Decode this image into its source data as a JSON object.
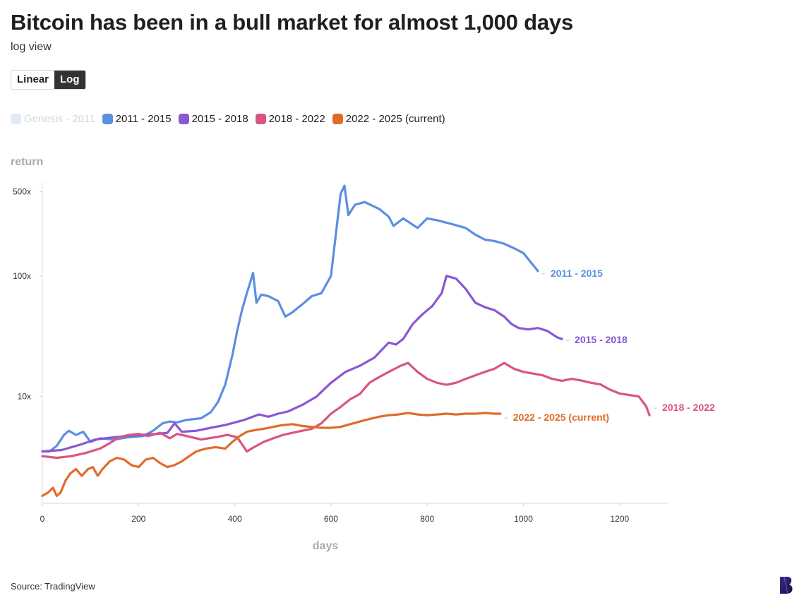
{
  "title": "Bitcoin has been in a bull market for almost 1,000 days",
  "subtitle": "log view",
  "toggle": {
    "linear_label": "Linear",
    "log_label": "Log",
    "selected": "Log"
  },
  "legend": [
    {
      "label": "Genesis - 2011",
      "color": "#cfdcf3",
      "visible": false
    },
    {
      "label": "2011 - 2015",
      "color": "#5b8fe0",
      "visible": true
    },
    {
      "label": "2015 - 2018",
      "color": "#8a57d4",
      "visible": true
    },
    {
      "label": "2018 - 2022",
      "color": "#d9557f",
      "visible": true
    },
    {
      "label": "2022 - 2025 (current)",
      "color": "#e06c2a",
      "visible": true
    }
  ],
  "source": "Source: TradingView",
  "chart_data": {
    "type": "line",
    "xlabel": "days",
    "ylabel": "return",
    "y_scale": "log",
    "xlim": [
      0,
      1300
    ],
    "ylim": [
      1.3,
      600
    ],
    "x_ticks": [
      0,
      200,
      400,
      600,
      800,
      1000,
      1200
    ],
    "y_ticks": [
      {
        "value": 500,
        "label": "500x"
      },
      {
        "value": 100,
        "label": "100x"
      },
      {
        "value": 10,
        "label": "10x"
      }
    ],
    "series": [
      {
        "name": "2011 - 2015",
        "color": "#5b8fe0",
        "points": [
          [
            0,
            3.5
          ],
          [
            15,
            3.5
          ],
          [
            30,
            3.9
          ],
          [
            45,
            4.8
          ],
          [
            55,
            5.2
          ],
          [
            70,
            4.8
          ],
          [
            85,
            5.1
          ],
          [
            100,
            4.2
          ],
          [
            120,
            4.5
          ],
          [
            150,
            4.4
          ],
          [
            180,
            4.6
          ],
          [
            210,
            4.7
          ],
          [
            230,
            5.2
          ],
          [
            250,
            6.0
          ],
          [
            265,
            6.2
          ],
          [
            280,
            6.1
          ],
          [
            300,
            6.4
          ],
          [
            330,
            6.6
          ],
          [
            350,
            7.4
          ],
          [
            365,
            9.0
          ],
          [
            380,
            12.5
          ],
          [
            395,
            22
          ],
          [
            405,
            35
          ],
          [
            415,
            52
          ],
          [
            425,
            72
          ],
          [
            432,
            88
          ],
          [
            438,
            106
          ],
          [
            445,
            60
          ],
          [
            455,
            70
          ],
          [
            470,
            68
          ],
          [
            490,
            62
          ],
          [
            505,
            46
          ],
          [
            520,
            50
          ],
          [
            540,
            58
          ],
          [
            560,
            68
          ],
          [
            580,
            72
          ],
          [
            600,
            100
          ],
          [
            610,
            220
          ],
          [
            620,
            480
          ],
          [
            628,
            560
          ],
          [
            636,
            320
          ],
          [
            650,
            390
          ],
          [
            670,
            410
          ],
          [
            700,
            360
          ],
          [
            720,
            310
          ],
          [
            730,
            260
          ],
          [
            750,
            300
          ],
          [
            780,
            250
          ],
          [
            800,
            300
          ],
          [
            820,
            290
          ],
          [
            850,
            270
          ],
          [
            880,
            250
          ],
          [
            900,
            220
          ],
          [
            920,
            200
          ],
          [
            940,
            195
          ],
          [
            960,
            185
          ],
          [
            980,
            170
          ],
          [
            1000,
            155
          ],
          [
            1015,
            130
          ],
          [
            1030,
            110
          ]
        ]
      },
      {
        "name": "2015 - 2018",
        "color": "#8a57d4",
        "points": [
          [
            0,
            3.5
          ],
          [
            40,
            3.6
          ],
          [
            80,
            4.0
          ],
          [
            110,
            4.4
          ],
          [
            150,
            4.6
          ],
          [
            200,
            4.8
          ],
          [
            240,
            4.9
          ],
          [
            260,
            5.0
          ],
          [
            275,
            6.0
          ],
          [
            290,
            5.1
          ],
          [
            320,
            5.2
          ],
          [
            350,
            5.5
          ],
          [
            380,
            5.8
          ],
          [
            420,
            6.4
          ],
          [
            450,
            7.1
          ],
          [
            470,
            6.8
          ],
          [
            490,
            7.2
          ],
          [
            510,
            7.5
          ],
          [
            540,
            8.5
          ],
          [
            570,
            10
          ],
          [
            600,
            13
          ],
          [
            630,
            16
          ],
          [
            660,
            18
          ],
          [
            690,
            21
          ],
          [
            720,
            28
          ],
          [
            735,
            27
          ],
          [
            750,
            30
          ],
          [
            770,
            40
          ],
          [
            790,
            48
          ],
          [
            810,
            56
          ],
          [
            830,
            72
          ],
          [
            840,
            100
          ],
          [
            860,
            95
          ],
          [
            880,
            78
          ],
          [
            900,
            60
          ],
          [
            920,
            55
          ],
          [
            940,
            52
          ],
          [
            960,
            46
          ],
          [
            975,
            40
          ],
          [
            990,
            37
          ],
          [
            1010,
            36
          ],
          [
            1030,
            37
          ],
          [
            1050,
            35
          ],
          [
            1070,
            31
          ],
          [
            1080,
            30
          ]
        ]
      },
      {
        "name": "2018 - 2022",
        "color": "#d9557f",
        "points": [
          [
            0,
            3.2
          ],
          [
            30,
            3.1
          ],
          [
            60,
            3.2
          ],
          [
            90,
            3.4
          ],
          [
            120,
            3.7
          ],
          [
            140,
            4.1
          ],
          [
            160,
            4.6
          ],
          [
            180,
            4.8
          ],
          [
            200,
            4.9
          ],
          [
            220,
            4.7
          ],
          [
            245,
            5.0
          ],
          [
            265,
            4.5
          ],
          [
            280,
            4.9
          ],
          [
            300,
            4.7
          ],
          [
            330,
            4.4
          ],
          [
            360,
            4.6
          ],
          [
            385,
            4.8
          ],
          [
            405,
            4.6
          ],
          [
            425,
            3.5
          ],
          [
            440,
            3.8
          ],
          [
            460,
            4.2
          ],
          [
            480,
            4.5
          ],
          [
            500,
            4.8
          ],
          [
            520,
            5.0
          ],
          [
            540,
            5.2
          ],
          [
            560,
            5.4
          ],
          [
            580,
            6.0
          ],
          [
            600,
            7.2
          ],
          [
            620,
            8.2
          ],
          [
            640,
            9.5
          ],
          [
            660,
            10.5
          ],
          [
            680,
            13
          ],
          [
            700,
            14.5
          ],
          [
            720,
            16
          ],
          [
            745,
            18
          ],
          [
            760,
            19
          ],
          [
            780,
            16
          ],
          [
            800,
            14
          ],
          [
            820,
            13
          ],
          [
            840,
            12.5
          ],
          [
            860,
            13
          ],
          [
            880,
            14
          ],
          [
            900,
            15
          ],
          [
            920,
            16
          ],
          [
            940,
            17
          ],
          [
            960,
            19
          ],
          [
            980,
            17
          ],
          [
            1000,
            16
          ],
          [
            1020,
            15.5
          ],
          [
            1040,
            15
          ],
          [
            1060,
            14
          ],
          [
            1080,
            13.5
          ],
          [
            1100,
            14
          ],
          [
            1120,
            13.6
          ],
          [
            1140,
            13
          ],
          [
            1160,
            12.6
          ],
          [
            1180,
            11.4
          ],
          [
            1200,
            10.6
          ],
          [
            1220,
            10.3
          ],
          [
            1240,
            10.0
          ],
          [
            1255,
            8.3
          ],
          [
            1262,
            7.0
          ]
        ]
      },
      {
        "name": "2022 - 2025 (current)",
        "color": "#e06c2a",
        "points": [
          [
            0,
            1.5
          ],
          [
            12,
            1.6
          ],
          [
            22,
            1.75
          ],
          [
            30,
            1.5
          ],
          [
            38,
            1.6
          ],
          [
            48,
            2.0
          ],
          [
            58,
            2.3
          ],
          [
            70,
            2.5
          ],
          [
            82,
            2.2
          ],
          [
            95,
            2.5
          ],
          [
            105,
            2.6
          ],
          [
            115,
            2.2
          ],
          [
            125,
            2.5
          ],
          [
            140,
            2.9
          ],
          [
            155,
            3.1
          ],
          [
            170,
            3.0
          ],
          [
            185,
            2.7
          ],
          [
            200,
            2.6
          ],
          [
            215,
            3.0
          ],
          [
            230,
            3.1
          ],
          [
            245,
            2.8
          ],
          [
            260,
            2.6
          ],
          [
            275,
            2.7
          ],
          [
            290,
            2.9
          ],
          [
            305,
            3.2
          ],
          [
            320,
            3.5
          ],
          [
            340,
            3.7
          ],
          [
            360,
            3.8
          ],
          [
            380,
            3.7
          ],
          [
            395,
            4.2
          ],
          [
            410,
            4.7
          ],
          [
            425,
            5.1
          ],
          [
            445,
            5.3
          ],
          [
            460,
            5.4
          ],
          [
            480,
            5.6
          ],
          [
            500,
            5.8
          ],
          [
            520,
            5.9
          ],
          [
            540,
            5.7
          ],
          [
            560,
            5.6
          ],
          [
            580,
            5.5
          ],
          [
            600,
            5.5
          ],
          [
            620,
            5.6
          ],
          [
            640,
            5.9
          ],
          [
            660,
            6.2
          ],
          [
            680,
            6.5
          ],
          [
            700,
            6.8
          ],
          [
            720,
            7.0
          ],
          [
            740,
            7.1
          ],
          [
            760,
            7.3
          ],
          [
            780,
            7.1
          ],
          [
            800,
            7.0
          ],
          [
            820,
            7.1
          ],
          [
            840,
            7.2
          ],
          [
            860,
            7.1
          ],
          [
            880,
            7.2
          ],
          [
            900,
            7.2
          ],
          [
            920,
            7.3
          ],
          [
            940,
            7.2
          ],
          [
            952,
            7.2
          ]
        ]
      }
    ],
    "end_labels": [
      {
        "series": "2011 - 2015",
        "label": "2011 - 2015"
      },
      {
        "series": "2015 - 2018",
        "label": "2015 - 2018"
      },
      {
        "series": "2018 - 2022",
        "label": "2018 - 2022"
      },
      {
        "series": "2022 - 2025 (current)",
        "label": "2022 - 2025 (current)"
      }
    ]
  }
}
